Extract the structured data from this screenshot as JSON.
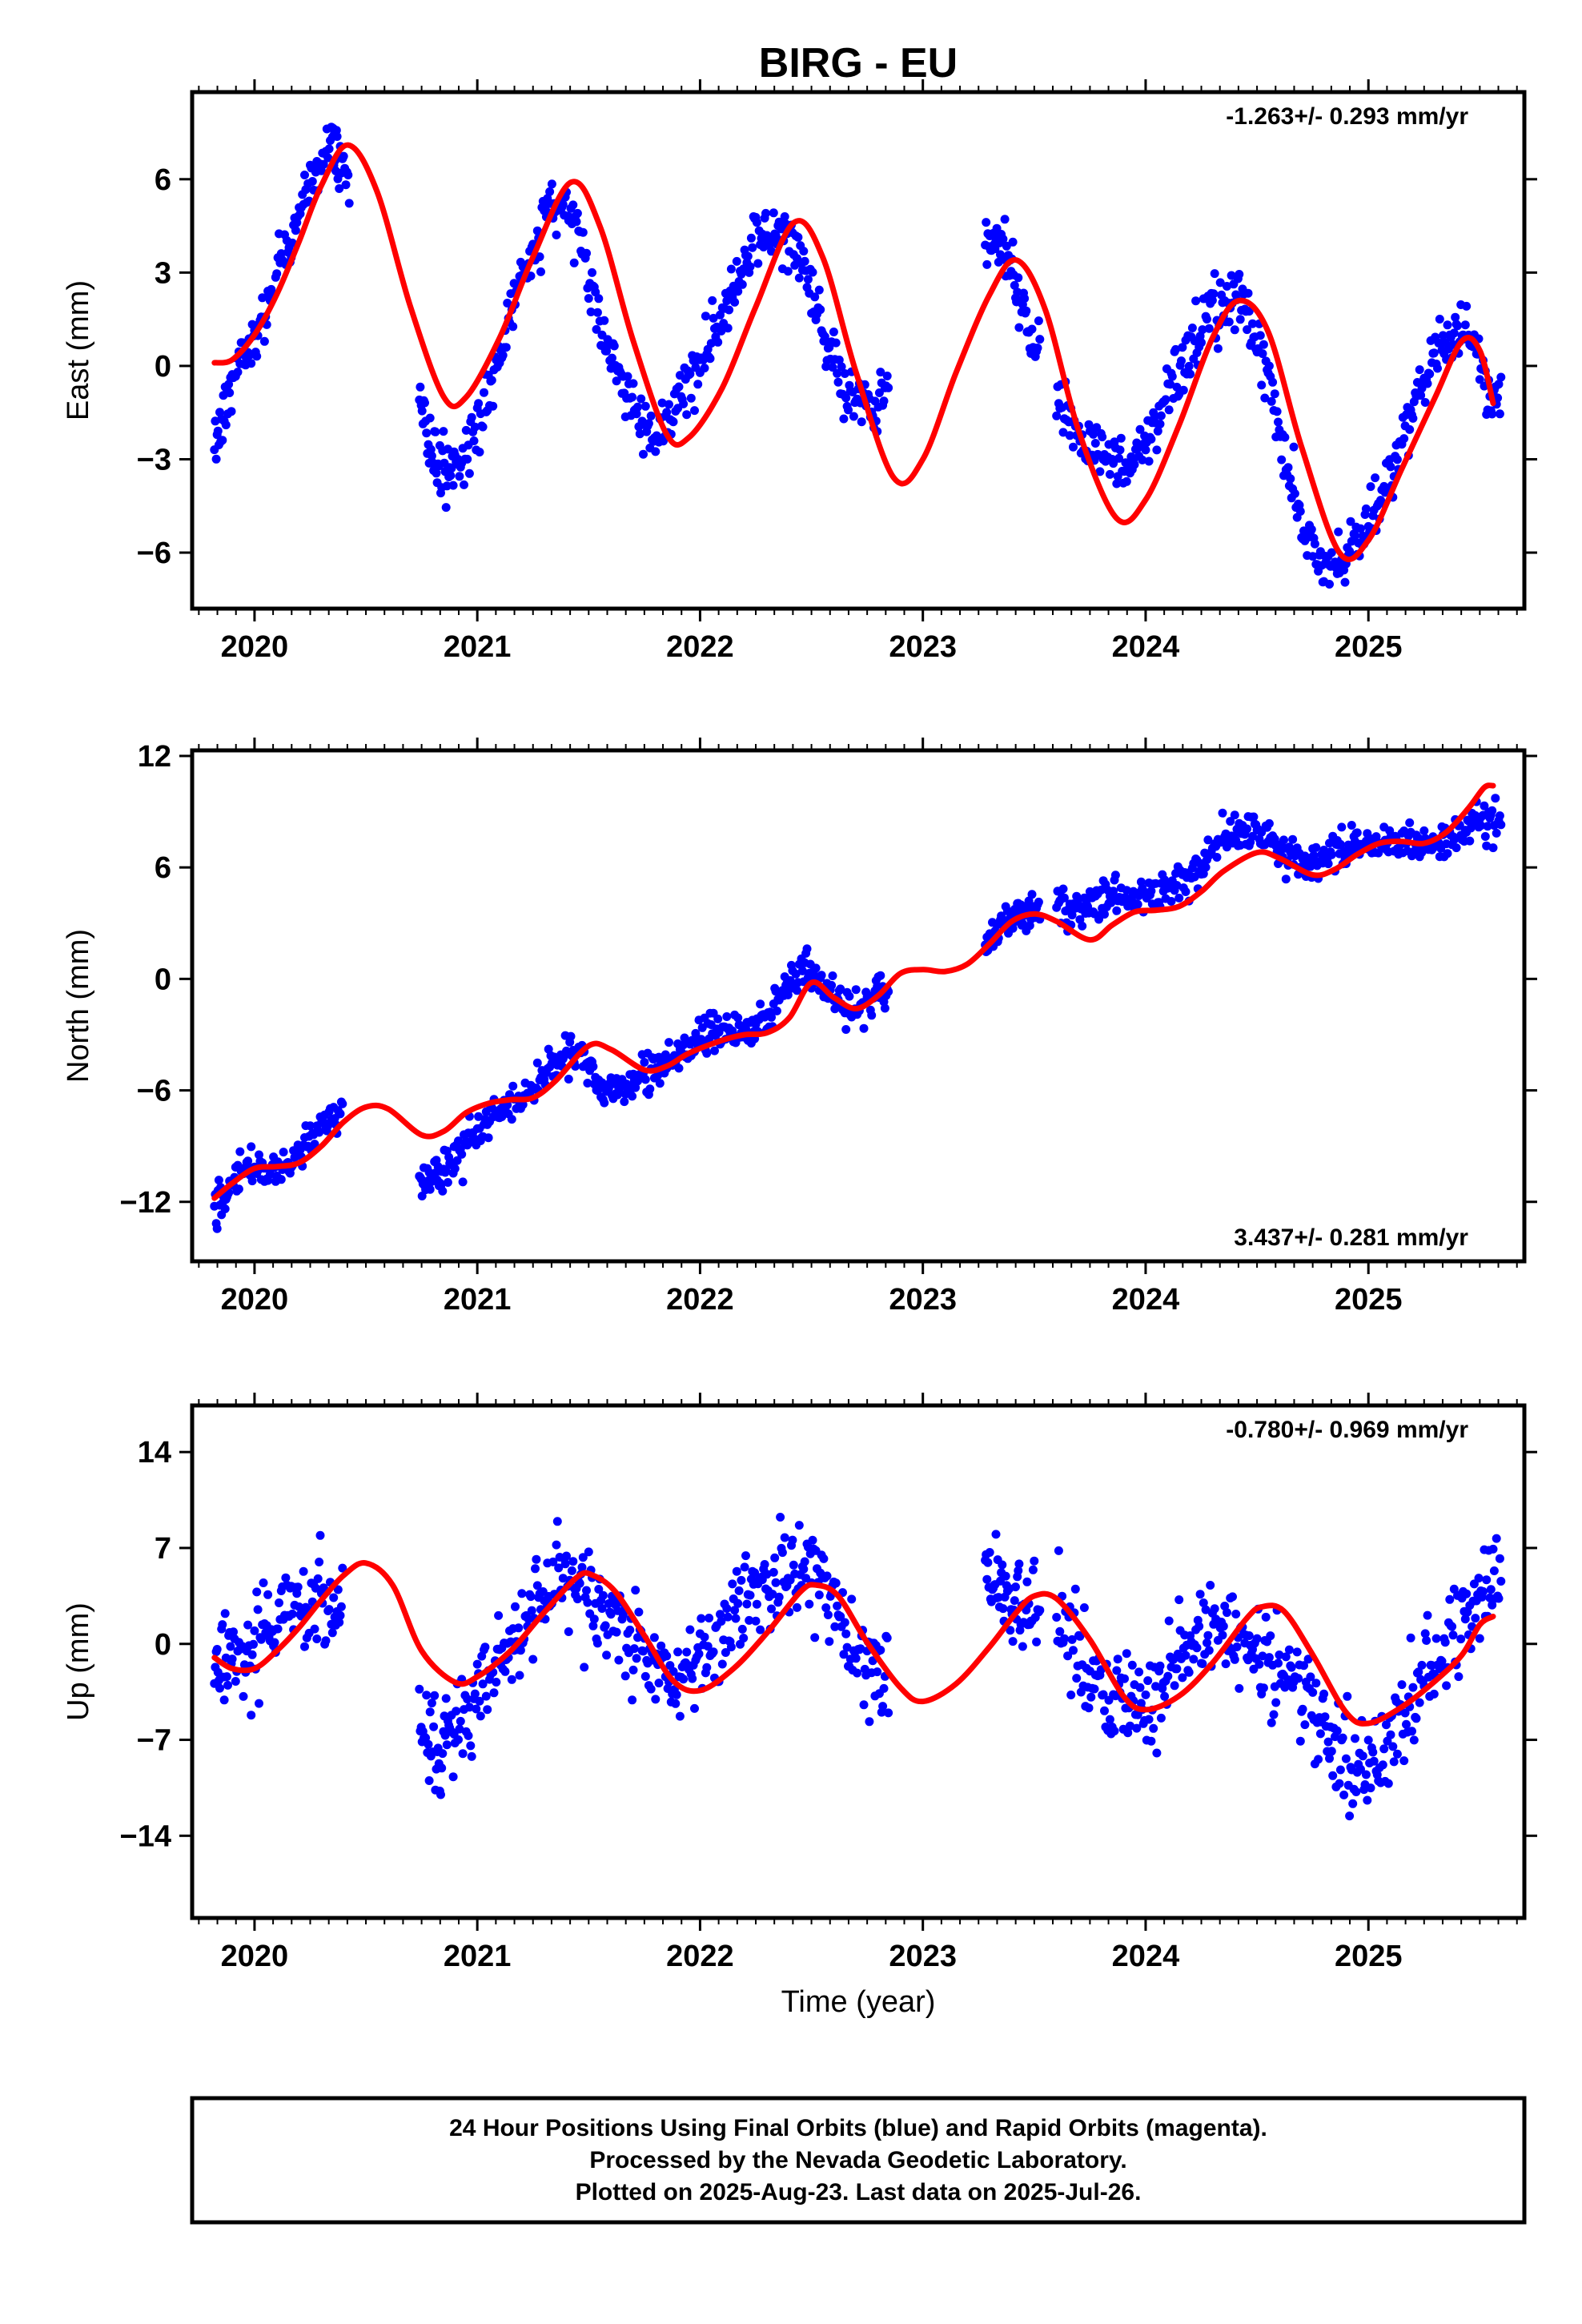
{
  "title": "BIRG - EU",
  "caption": {
    "lines": [
      "24 Hour Positions Using Final Orbits (blue) and Rapid Orbits (magenta).",
      "Processed by the Nevada Geodetic Laboratory.",
      "Plotted on 2025-Aug-23. Last data on 2025-Jul-26."
    ]
  },
  "colors": {
    "points": "#0000ff",
    "fit": "#ff0000",
    "frame": "#000000"
  },
  "chart_data": [
    {
      "type": "scatter",
      "ylabel": "East (mm)",
      "rate_text": "-1.263+/- 0.293 mm/yr",
      "rate_position": "top-right",
      "xlim": [
        2019.72,
        2025.7
      ],
      "ylim": [
        -7.8,
        8.8
      ],
      "yticks": [
        -6,
        -3,
        0,
        3,
        6
      ],
      "xticks": [
        2020,
        2021,
        2022,
        2023,
        2024,
        2025
      ],
      "series": [
        {
          "kind": "points",
          "x": [
            2019.82,
            2019.86,
            2019.9,
            2019.95,
            2020.0,
            2020.05,
            2020.1,
            2020.15,
            2020.2,
            2020.25,
            2020.3,
            2020.35,
            2020.38,
            2020.74,
            2020.78,
            2020.82,
            2020.86,
            2020.9,
            2020.95,
            2021.0,
            2021.05,
            2021.1,
            2021.15,
            2021.2,
            2021.25,
            2021.3,
            2021.35,
            2021.4,
            2021.45,
            2021.5,
            2021.55,
            2021.6,
            2021.65,
            2021.7,
            2021.75,
            2021.8,
            2021.85,
            2021.9,
            2021.95,
            2022.0,
            2022.05,
            2022.1,
            2022.15,
            2022.2,
            2022.25,
            2022.3,
            2022.35,
            2022.4,
            2022.45,
            2022.5,
            2022.55,
            2022.6,
            2022.65,
            2022.7,
            2022.75,
            2022.8,
            2023.28,
            2023.32,
            2023.36,
            2023.4,
            2023.44,
            2023.48,
            2023.6,
            2023.65,
            2023.7,
            2023.75,
            2023.8,
            2023.85,
            2023.9,
            2023.95,
            2024.0,
            2024.05,
            2024.1,
            2024.15,
            2024.2,
            2024.25,
            2024.3,
            2024.35,
            2024.4,
            2024.45,
            2024.5,
            2024.55,
            2024.6,
            2024.65,
            2024.7,
            2024.75,
            2024.8,
            2024.85,
            2024.9,
            2024.95,
            2025.0,
            2025.05,
            2025.1,
            2025.15,
            2025.2,
            2025.25,
            2025.3,
            2025.35,
            2025.4,
            2025.45,
            2025.5,
            2025.55
          ],
          "y": [
            -2.5,
            -1.6,
            -0.6,
            0.2,
            0.9,
            1.6,
            2.6,
            3.7,
            4.8,
            5.9,
            6.6,
            7.0,
            6.8,
            -0.9,
            -2.4,
            -3.1,
            -3.4,
            -3.2,
            -2.8,
            -2.0,
            -1.0,
            0.3,
            1.6,
            2.9,
            3.9,
            4.8,
            5.3,
            5.1,
            4.3,
            3.1,
            1.6,
            0.3,
            -0.7,
            -1.4,
            -2.0,
            -2.2,
            -1.9,
            -1.3,
            -0.6,
            0.1,
            0.9,
            1.7,
            2.6,
            3.4,
            4.0,
            4.3,
            4.4,
            4.1,
            3.4,
            2.4,
            1.1,
            0.0,
            -0.8,
            -1.4,
            -1.0,
            -1.2,
            4.2,
            4.1,
            3.8,
            3.2,
            2.0,
            0.9,
            -0.7,
            -1.6,
            -2.2,
            -2.6,
            -2.9,
            -3.1,
            -3.1,
            -2.9,
            -2.5,
            -1.9,
            -1.1,
            -0.3,
            0.5,
            1.2,
            1.8,
            2.2,
            2.3,
            1.8,
            0.8,
            -0.5,
            -2.0,
            -3.6,
            -4.8,
            -5.6,
            -6.1,
            -6.2,
            -6.0,
            -5.6,
            -5.0,
            -4.2,
            -3.3,
            -2.4,
            -1.5,
            -0.6,
            0.2,
            0.8,
            1.2,
            1.1,
            0.3,
            -1.2
          ]
        },
        {
          "kind": "fit",
          "x": [
            2019.82,
            2019.9,
            2020.0,
            2020.1,
            2020.2,
            2020.3,
            2020.42,
            2020.55,
            2020.7,
            2020.85,
            2020.95,
            2021.1,
            2021.25,
            2021.42,
            2021.55,
            2021.7,
            2021.85,
            2021.95,
            2022.1,
            2022.25,
            2022.42,
            2022.55,
            2022.7,
            2022.87,
            2023.0,
            2023.15,
            2023.3,
            2023.42,
            2023.55,
            2023.7,
            2023.87,
            2024.0,
            2024.15,
            2024.3,
            2024.42,
            2024.55,
            2024.7,
            2024.87,
            2025.0,
            2025.15,
            2025.3,
            2025.42,
            2025.5,
            2025.56
          ],
          "y": [
            0.1,
            0.2,
            1.0,
            2.3,
            4.0,
            5.8,
            7.1,
            5.6,
            1.9,
            -1.0,
            -1.0,
            0.9,
            3.5,
            5.9,
            4.5,
            0.8,
            -2.2,
            -2.3,
            -0.7,
            1.9,
            4.6,
            3.5,
            -0.2,
            -3.6,
            -3.0,
            -0.2,
            2.3,
            3.4,
            1.8,
            -2.1,
            -4.9,
            -4.3,
            -1.9,
            0.9,
            2.1,
            1.1,
            -2.6,
            -6.0,
            -5.6,
            -3.3,
            -1.0,
            0.8,
            0.5,
            -1.2
          ]
        }
      ]
    },
    {
      "type": "scatter",
      "ylabel": "North (mm)",
      "rate_text": "3.437+/- 0.281 mm/yr",
      "rate_position": "bottom-right",
      "xlim": [
        2019.72,
        2025.7
      ],
      "ylim": [
        -15.2,
        12.3
      ],
      "yticks": [
        -12,
        -6,
        0,
        6,
        12
      ],
      "xticks": [
        2020,
        2021,
        2022,
        2023,
        2024,
        2025
      ],
      "series": [
        {
          "kind": "points",
          "x": [
            2019.82,
            2019.86,
            2019.9,
            2019.95,
            2020.0,
            2020.05,
            2020.1,
            2020.15,
            2020.2,
            2020.25,
            2020.3,
            2020.35,
            2020.74,
            2020.78,
            2020.82,
            2020.86,
            2020.9,
            2020.95,
            2021.0,
            2021.05,
            2021.1,
            2021.15,
            2021.2,
            2021.25,
            2021.3,
            2021.35,
            2021.4,
            2021.45,
            2021.5,
            2021.55,
            2021.6,
            2021.65,
            2021.7,
            2021.75,
            2021.8,
            2021.85,
            2021.9,
            2021.95,
            2022.0,
            2022.05,
            2022.1,
            2022.15,
            2022.2,
            2022.25,
            2022.3,
            2022.35,
            2022.4,
            2022.45,
            2022.5,
            2022.55,
            2022.6,
            2022.65,
            2022.7,
            2022.75,
            2022.8,
            2023.28,
            2023.32,
            2023.36,
            2023.4,
            2023.44,
            2023.48,
            2023.6,
            2023.65,
            2023.7,
            2023.75,
            2023.8,
            2023.85,
            2023.9,
            2023.95,
            2024.0,
            2024.05,
            2024.1,
            2024.15,
            2024.2,
            2024.25,
            2024.3,
            2024.35,
            2024.4,
            2024.45,
            2024.5,
            2024.55,
            2024.6,
            2024.65,
            2024.7,
            2024.75,
            2024.8,
            2024.85,
            2024.9,
            2024.95,
            2025.0,
            2025.05,
            2025.1,
            2025.15,
            2025.2,
            2025.25,
            2025.3,
            2025.35,
            2025.4,
            2025.45,
            2025.5,
            2025.55
          ],
          "y": [
            -12.3,
            -11.6,
            -10.9,
            -10.4,
            -10.2,
            -10.3,
            -10.3,
            -10.0,
            -9.3,
            -8.5,
            -7.7,
            -7.2,
            -10.6,
            -10.9,
            -10.6,
            -10.1,
            -9.5,
            -8.9,
            -8.2,
            -7.6,
            -7.0,
            -6.8,
            -6.5,
            -6.0,
            -5.3,
            -4.5,
            -4.0,
            -3.9,
            -4.6,
            -5.4,
            -5.8,
            -5.9,
            -5.5,
            -5.1,
            -4.7,
            -4.3,
            -3.9,
            -3.5,
            -3.2,
            -2.9,
            -2.8,
            -2.7,
            -2.6,
            -2.4,
            -1.9,
            -1.1,
            -0.2,
            0.5,
            0.4,
            -0.6,
            -1.2,
            -1.5,
            -1.4,
            -1.2,
            -0.9,
            1.6,
            2.4,
            3.1,
            3.3,
            3.4,
            3.6,
            4.0,
            3.6,
            3.8,
            4.1,
            4.2,
            4.3,
            4.4,
            4.5,
            4.5,
            4.7,
            4.9,
            5.2,
            5.6,
            6.1,
            6.9,
            7.6,
            8.1,
            8.2,
            8.0,
            7.5,
            6.9,
            6.5,
            6.3,
            6.4,
            6.7,
            7.0,
            7.2,
            7.3,
            7.4,
            7.4,
            7.4,
            7.4,
            7.3,
            7.1,
            7.2,
            7.4,
            7.7,
            8.0,
            8.3,
            8.5
          ]
        },
        {
          "kind": "fit",
          "x": [
            2019.82,
            2019.9,
            2020.0,
            2020.1,
            2020.2,
            2020.3,
            2020.4,
            2020.5,
            2020.6,
            2020.75,
            2020.85,
            2020.95,
            2021.05,
            2021.15,
            2021.25,
            2021.35,
            2021.5,
            2021.6,
            2021.75,
            2021.85,
            2021.95,
            2022.1,
            2022.2,
            2022.3,
            2022.4,
            2022.5,
            2022.6,
            2022.7,
            2022.8,
            2022.9,
            2023.0,
            2023.1,
            2023.2,
            2023.3,
            2023.4,
            2023.5,
            2023.6,
            2023.75,
            2023.85,
            2023.95,
            2024.05,
            2024.15,
            2024.25,
            2024.35,
            2024.5,
            2024.6,
            2024.75,
            2024.85,
            2024.95,
            2025.05,
            2025.15,
            2025.25,
            2025.35,
            2025.45,
            2025.52,
            2025.56
          ],
          "y": [
            -11.8,
            -11.0,
            -10.2,
            -10.1,
            -9.9,
            -9.0,
            -7.7,
            -6.9,
            -7.0,
            -8.4,
            -8.2,
            -7.2,
            -6.7,
            -6.5,
            -6.4,
            -5.5,
            -3.6,
            -3.8,
            -4.9,
            -4.7,
            -4.0,
            -3.3,
            -3.0,
            -2.9,
            -2.1,
            -0.2,
            -1.0,
            -1.6,
            -0.9,
            0.3,
            0.5,
            0.4,
            0.8,
            1.9,
            3.1,
            3.5,
            3.1,
            2.1,
            2.9,
            3.6,
            3.7,
            3.9,
            4.7,
            5.8,
            6.8,
            6.5,
            5.6,
            5.9,
            6.7,
            7.3,
            7.4,
            7.3,
            7.9,
            9.2,
            10.3,
            10.4
          ]
        }
      ]
    },
    {
      "type": "scatter",
      "ylabel": "Up (mm)",
      "rate_text": "-0.780+/- 0.969 mm/yr",
      "rate_position": "top-right",
      "xlabel": "Time (year)",
      "xlim": [
        2019.72,
        2025.7
      ],
      "ylim": [
        -20.0,
        17.4
      ],
      "yticks": [
        -14,
        -7,
        0,
        7,
        14
      ],
      "xticks": [
        2020,
        2021,
        2022,
        2023,
        2024,
        2025
      ],
      "series": [
        {
          "kind": "points",
          "x": [
            2019.82,
            2019.86,
            2019.9,
            2019.95,
            2020.0,
            2020.05,
            2020.1,
            2020.15,
            2020.2,
            2020.25,
            2020.3,
            2020.35,
            2020.74,
            2020.78,
            2020.82,
            2020.86,
            2020.9,
            2020.95,
            2021.0,
            2021.05,
            2021.1,
            2021.15,
            2021.2,
            2021.25,
            2021.3,
            2021.35,
            2021.4,
            2021.45,
            2021.5,
            2021.55,
            2021.6,
            2021.65,
            2021.7,
            2021.75,
            2021.8,
            2021.85,
            2021.9,
            2021.95,
            2022.0,
            2022.05,
            2022.1,
            2022.15,
            2022.2,
            2022.25,
            2022.3,
            2022.35,
            2022.4,
            2022.45,
            2022.5,
            2022.55,
            2022.6,
            2022.65,
            2022.7,
            2022.75,
            2022.8,
            2023.28,
            2023.32,
            2023.36,
            2023.4,
            2023.44,
            2023.48,
            2023.6,
            2023.65,
            2023.7,
            2023.75,
            2023.8,
            2023.85,
            2023.9,
            2023.95,
            2024.0,
            2024.05,
            2024.1,
            2024.15,
            2024.2,
            2024.25,
            2024.3,
            2024.35,
            2024.4,
            2024.45,
            2024.5,
            2024.55,
            2024.6,
            2024.65,
            2024.7,
            2024.75,
            2024.8,
            2024.85,
            2024.9,
            2024.95,
            2025.0,
            2025.05,
            2025.1,
            2025.15,
            2025.2,
            2025.25,
            2025.3,
            2025.35,
            2025.4,
            2025.45,
            2025.5,
            2025.55
          ],
          "y": [
            -2.0,
            -1.5,
            -1.0,
            -0.5,
            0.0,
            0.6,
            1.3,
            2.0,
            2.7,
            3.2,
            3.4,
            3.1,
            -4.5,
            -6.5,
            -7.6,
            -7.4,
            -6.5,
            -5.3,
            -3.8,
            -2.5,
            -1.4,
            -0.4,
            0.8,
            2.1,
            3.4,
            4.5,
            4.9,
            4.6,
            3.8,
            2.6,
            1.4,
            0.3,
            -0.7,
            -1.4,
            -1.9,
            -2.2,
            -2.1,
            -1.7,
            -1.1,
            -0.4,
            0.4,
            1.3,
            2.3,
            3.3,
            4.3,
            5.2,
            5.8,
            6.0,
            5.5,
            4.4,
            2.8,
            1.1,
            -0.2,
            -1.5,
            -2.7,
            5.5,
            4.8,
            4.0,
            3.2,
            2.5,
            1.9,
            2.1,
            1.0,
            -0.4,
            -1.8,
            -3.0,
            -3.9,
            -4.5,
            -4.7,
            -4.4,
            -3.6,
            -2.5,
            -1.3,
            -0.3,
            0.5,
            1.0,
            1.2,
            0.9,
            0.2,
            -0.7,
            -1.5,
            -2.3,
            -3.0,
            -3.7,
            -4.4,
            -5.5,
            -7.0,
            -8.5,
            -9.5,
            -9.2,
            -8.0,
            -6.6,
            -5.2,
            -3.9,
            -2.7,
            -1.6,
            -0.5,
            0.6,
            1.8,
            3.2,
            4.6
          ]
        },
        {
          "kind": "fit",
          "x": [
            2019.82,
            2019.9,
            2020.0,
            2020.1,
            2020.2,
            2020.3,
            2020.4,
            2020.5,
            2020.62,
            2020.75,
            2020.9,
            2021.0,
            2021.15,
            2021.3,
            2021.45,
            2021.52,
            2021.62,
            2021.75,
            2021.88,
            2022.0,
            2022.15,
            2022.3,
            2022.45,
            2022.52,
            2022.62,
            2022.75,
            2022.9,
            2023.0,
            2023.15,
            2023.3,
            2023.42,
            2023.5,
            2023.6,
            2023.75,
            2023.9,
            2024.0,
            2024.15,
            2024.3,
            2024.45,
            2024.52,
            2024.62,
            2024.75,
            2024.9,
            2025.0,
            2025.15,
            2025.3,
            2025.42,
            2025.5,
            2025.56
          ],
          "y": [
            -1.0,
            -1.8,
            -1.8,
            -0.5,
            1.2,
            3.2,
            5.0,
            5.9,
            4.3,
            -0.5,
            -2.8,
            -2.4,
            -0.5,
            2.3,
            4.9,
            5.0,
            3.8,
            0.6,
            -2.7,
            -3.4,
            -1.8,
            0.8,
            3.8,
            4.3,
            3.5,
            0.1,
            -3.2,
            -4.2,
            -2.9,
            -0.2,
            2.3,
            3.5,
            3.3,
            0.3,
            -3.8,
            -4.8,
            -3.8,
            -1.4,
            1.8,
            2.7,
            2.4,
            -0.8,
            -5.0,
            -5.8,
            -4.6,
            -2.7,
            -0.8,
            1.4,
            2.0
          ]
        }
      ]
    }
  ]
}
